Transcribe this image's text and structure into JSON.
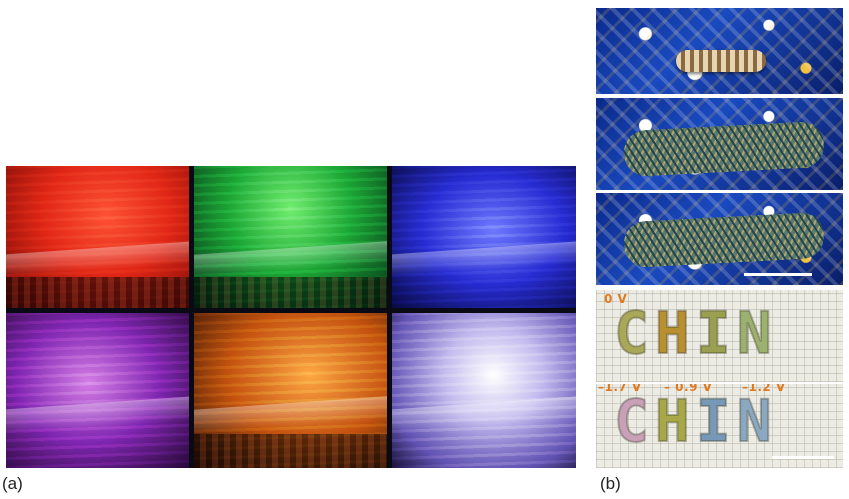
{
  "panel_a": {
    "label": "(a)",
    "tiles": [
      {
        "color": "#e42a18"
      },
      {
        "color": "#1fae3a"
      },
      {
        "color": "#2a2fd6"
      },
      {
        "color": "#8a2ab8"
      },
      {
        "color": "#c85a10"
      },
      {
        "color": "#c8c0f0"
      }
    ]
  },
  "panel_b": {
    "label": "(b)",
    "stitch_top": {
      "voltage": "0 V",
      "letters": [
        "C",
        "H",
        "I",
        "N"
      ],
      "colors": [
        "#a8a858",
        "#b89030",
        "#9aa050",
        "#9cb070"
      ]
    },
    "stitch_bottom": {
      "voltages": [
        "–1.7 V",
        "– 0.9 V",
        "–1.2 V"
      ],
      "letters": [
        "C",
        "H",
        "I",
        "N"
      ],
      "colors": [
        "#c8a0b8",
        "#a8a848",
        "#7898b8",
        "#8aa8c0"
      ]
    }
  }
}
